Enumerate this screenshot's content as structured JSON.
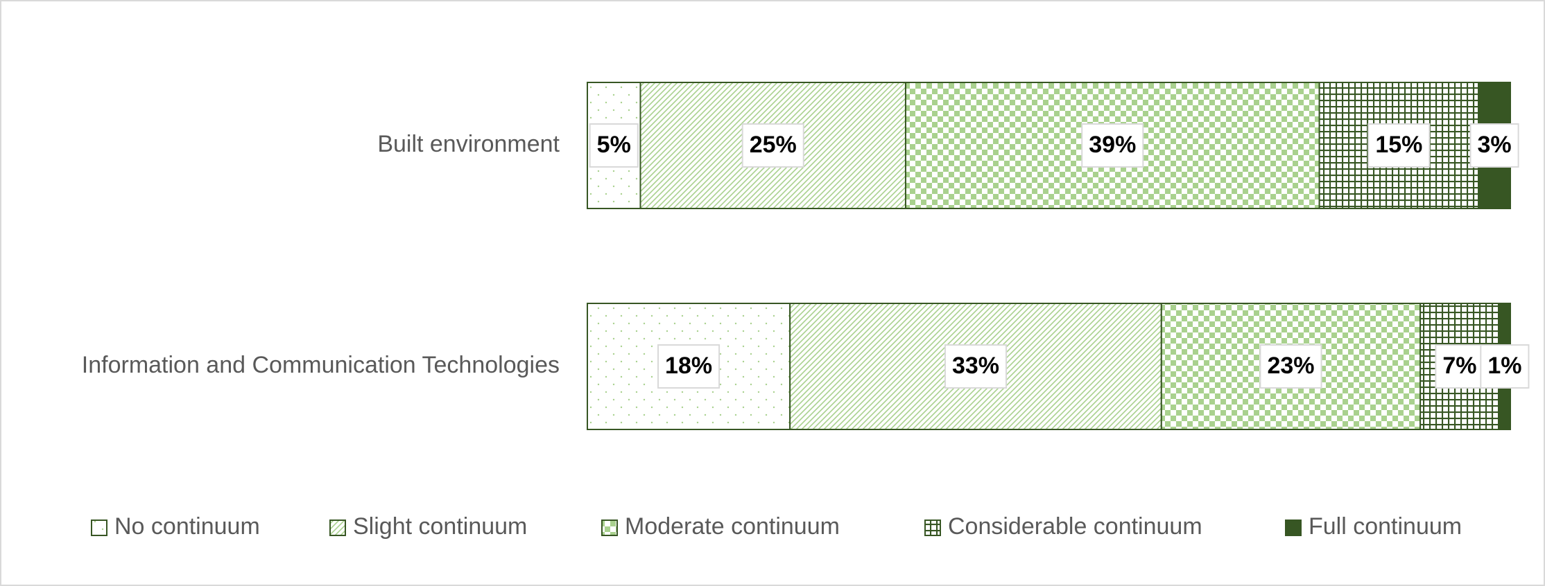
{
  "chart_data": {
    "type": "bar",
    "orientation": "horizontal",
    "stacking": "percent",
    "categories": [
      "Built environment",
      "Information and Communication Technologies"
    ],
    "series": [
      {
        "name": "No continuum",
        "color": "#a9d18e",
        "pattern": "dots",
        "values": [
          5,
          18
        ],
        "value_labels": [
          "5%",
          "18%"
        ]
      },
      {
        "name": "Slight continuum",
        "color": "#a9d18e",
        "pattern": "diagonal",
        "values": [
          25,
          33
        ],
        "value_labels": [
          "25%",
          "33%"
        ]
      },
      {
        "name": "Moderate continuum",
        "color": "#a9d18e",
        "pattern": "checker",
        "values": [
          39,
          23
        ],
        "value_labels": [
          "39%",
          "23%"
        ]
      },
      {
        "name": "Considerable continuum",
        "color": "#375623",
        "pattern": "grid",
        "values": [
          15,
          7
        ],
        "value_labels": [
          "15%",
          "7%"
        ]
      },
      {
        "name": "Full continuum",
        "color": "#375623",
        "pattern": "solid",
        "values": [
          3,
          1
        ],
        "value_labels": [
          "3%",
          "1%"
        ]
      }
    ],
    "legend": "bottom"
  }
}
